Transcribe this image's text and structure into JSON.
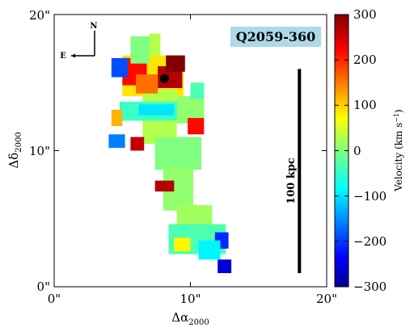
{
  "chart_data": {
    "type": "heatmap",
    "object_label": "Q2059-360",
    "x_axis": {
      "label": "Δα",
      "label_sub": "2000",
      "ticks": [
        "0\"",
        "10\"",
        "20\""
      ],
      "tick_values": [
        0,
        10,
        20
      ],
      "range": [
        0,
        20
      ]
    },
    "y_axis": {
      "label": "Δδ",
      "label_sub": "2000",
      "ticks": [
        "0\"",
        "10\"",
        "20\""
      ],
      "tick_values": [
        0,
        10,
        20
      ],
      "range": [
        0,
        20
      ]
    },
    "colorbar": {
      "label": "Velocity (km s",
      "label_sup": "−1",
      "label_close": ")",
      "ticks": [
        "300",
        "200",
        "100",
        "0",
        "−100",
        "−200",
        "−300"
      ],
      "tick_values": [
        300,
        200,
        100,
        0,
        -100,
        -200,
        -300
      ],
      "range": [
        -300,
        300
      ],
      "colormap": "jet"
    },
    "compass": {
      "north": "N",
      "east": "E"
    },
    "scale_bar": {
      "label": "100 kpc",
      "x": 18,
      "y_range": [
        1,
        16
      ]
    },
    "quasar_marker": {
      "x": 8.1,
      "y": 15.3
    },
    "regions": [
      {
        "x": [
          5.0,
          9.5
        ],
        "y": [
          14.0,
          17.0
        ],
        "velocity": 90
      },
      {
        "x": [
          6.5,
          9.0
        ],
        "y": [
          10.5,
          14.5
        ],
        "velocity": 30
      },
      {
        "x": [
          4.8,
          9.6
        ],
        "y": [
          12.2,
          13.6
        ],
        "velocity": -40
      },
      {
        "x": [
          9.0,
          11.0
        ],
        "y": [
          12.0,
          14.0
        ],
        "velocity": 10
      },
      {
        "x": [
          7.4,
          10.8
        ],
        "y": [
          8.6,
          11.0
        ],
        "velocity": 0
      },
      {
        "x": [
          8.0,
          10.2
        ],
        "y": [
          5.6,
          8.8
        ],
        "velocity": 10
      },
      {
        "x": [
          9.0,
          11.6
        ],
        "y": [
          4.6,
          6.0
        ],
        "velocity": 20
      },
      {
        "x": [
          8.4,
          12.6
        ],
        "y": [
          2.4,
          4.6
        ],
        "velocity": -30
      },
      {
        "x": [
          5.0,
          6.8
        ],
        "y": [
          14.8,
          16.8
        ],
        "velocity": 220
      },
      {
        "x": [
          4.2,
          5.0
        ],
        "y": [
          11.8,
          13.0
        ],
        "velocity": 120
      },
      {
        "x": [
          7.6,
          9.4
        ],
        "y": [
          14.6,
          16.2
        ],
        "velocity": 270
      },
      {
        "x": [
          8.2,
          9.6
        ],
        "y": [
          15.8,
          17.0
        ],
        "velocity": 300
      },
      {
        "x": [
          6.0,
          7.6
        ],
        "y": [
          14.2,
          15.6
        ],
        "velocity": 160
      },
      {
        "x": [
          9.8,
          11.0
        ],
        "y": [
          11.2,
          12.4
        ],
        "velocity": 220
      },
      {
        "x": [
          7.4,
          8.8
        ],
        "y": [
          7.0,
          7.8
        ],
        "velocity": 270
      },
      {
        "x": [
          5.6,
          6.6
        ],
        "y": [
          10.0,
          11.0
        ],
        "velocity": 260
      },
      {
        "x": [
          4.2,
          5.4
        ],
        "y": [
          15.4,
          16.8
        ],
        "velocity": -180
      },
      {
        "x": [
          4.0,
          5.2
        ],
        "y": [
          10.2,
          11.2
        ],
        "velocity": -150
      },
      {
        "x": [
          12.0,
          13.0
        ],
        "y": [
          1.0,
          2.0
        ],
        "velocity": -250
      },
      {
        "x": [
          11.8,
          12.8
        ],
        "y": [
          2.8,
          4.0
        ],
        "velocity": -200
      },
      {
        "x": [
          10.6,
          12.2
        ],
        "y": [
          2.0,
          3.4
        ],
        "velocity": -80
      },
      {
        "x": [
          8.8,
          10.0
        ],
        "y": [
          2.6,
          3.6
        ],
        "velocity": 80
      },
      {
        "x": [
          10.0,
          11.0
        ],
        "y": [
          13.8,
          15.0
        ],
        "velocity": -30
      },
      {
        "x": [
          5.6,
          7.0
        ],
        "y": [
          16.4,
          18.4
        ],
        "velocity": 0
      },
      {
        "x": [
          7.0,
          7.8
        ],
        "y": [
          17.0,
          18.6
        ],
        "velocity": 30
      },
      {
        "x": [
          6.2,
          8.8
        ],
        "y": [
          12.6,
          13.4
        ],
        "velocity": -90
      }
    ]
  }
}
